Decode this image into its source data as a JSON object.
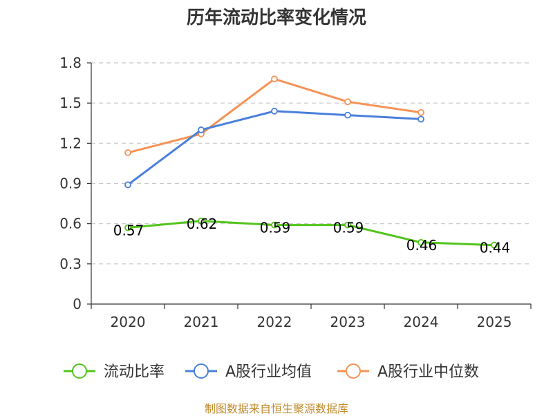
{
  "chart_data": {
    "type": "line",
    "title": "历年流动比率变化情况",
    "categories": [
      "2020",
      "2021",
      "2022",
      "2023",
      "2024",
      "2025"
    ],
    "yticks": [
      "0",
      "0.3",
      "0.6",
      "0.9",
      "1.2",
      "1.5",
      "1.8"
    ],
    "ylim": [
      0,
      1.8
    ],
    "series": [
      {
        "name": "流动比率",
        "color": "#52c41a",
        "values": [
          0.57,
          0.62,
          0.59,
          0.59,
          0.46,
          0.44
        ],
        "labels": [
          "0.57",
          "0.62",
          "0.59",
          "0.59",
          "0.46",
          "0.44"
        ]
      },
      {
        "name": "A股行业均值",
        "color": "#4a7fdb",
        "values": [
          0.89,
          1.3,
          1.44,
          1.41,
          1.38,
          null
        ]
      },
      {
        "name": "A股行业中位数",
        "color": "#f59356",
        "values": [
          1.13,
          1.27,
          1.68,
          1.51,
          1.43,
          null
        ]
      }
    ],
    "grid": true,
    "legend_position": "bottom"
  },
  "source": "制图数据来自恒生聚源数据库"
}
